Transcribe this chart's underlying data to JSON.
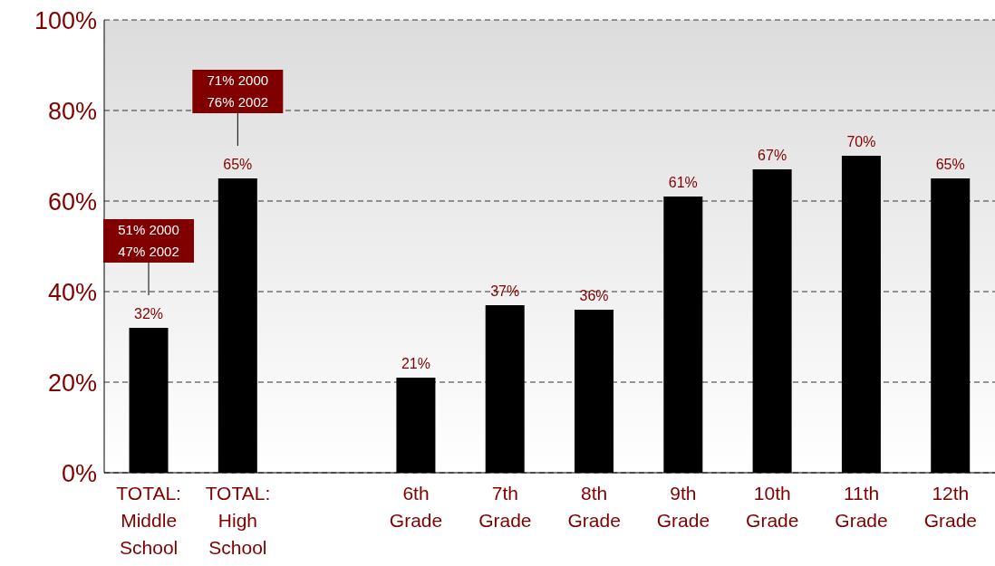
{
  "chart_data": {
    "type": "bar",
    "categories": [
      "TOTAL: Middle School",
      "TOTAL: High School",
      null,
      "6th Grade",
      "7th Grade",
      "8th Grade",
      "9th Grade",
      "10th Grade",
      "11th Grade",
      "12th Grade"
    ],
    "values": [
      32,
      65,
      null,
      21,
      37,
      36,
      61,
      67,
      70,
      65
    ],
    "value_labels": [
      "32%",
      "65%",
      null,
      "21%",
      "37%",
      "36%",
      "61%",
      "67%",
      "70%",
      "65%"
    ],
    "color": "#000000",
    "ylim": [
      0,
      100
    ],
    "yticks": [
      {
        "value": 0,
        "label": "0%"
      },
      {
        "value": 20,
        "label": "20%"
      },
      {
        "value": 40,
        "label": "40%"
      },
      {
        "value": 60,
        "label": "60%"
      },
      {
        "value": 80,
        "label": "80%"
      },
      {
        "value": 100,
        "label": "100%"
      }
    ],
    "grid": "y",
    "legend": false,
    "annotations": [
      "51% 2000\n47% 2002",
      "71% 2000\n76% 2002"
    ]
  }
}
